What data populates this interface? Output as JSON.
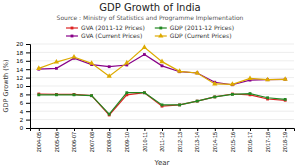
{
  "chart_data": {
    "type": "line",
    "title": "GDP Growth of India",
    "subtitle": "Source : Ministry of Statistics and Programme Implementation",
    "xlabel": "Year",
    "ylabel": "GDP Growth (%)",
    "categories": [
      "2004-05",
      "2005-06",
      "2006-07",
      "2007-08",
      "2008-09",
      "2009-10",
      "2010-11",
      "2011-12",
      "2012-13",
      "2013-14",
      "2014-15",
      "2015-16",
      "2016-17",
      "2017-18",
      "2018-19"
    ],
    "series": [
      {
        "name": "GVA (2011-12 Prices)",
        "color": "#dd2222",
        "marker": "square",
        "values": [
          8.1,
          8.0,
          8.0,
          7.7,
          3.1,
          7.9,
          8.4,
          5.2,
          5.5,
          6.4,
          7.4,
          8.1,
          7.9,
          6.9,
          6.6
        ]
      },
      {
        "name": "GDP (2011-12 Prices)",
        "color": "#228822",
        "marker": "square",
        "values": [
          7.9,
          7.9,
          7.9,
          7.7,
          3.3,
          8.4,
          8.4,
          5.5,
          5.5,
          6.4,
          7.4,
          8.0,
          8.2,
          7.2,
          6.8
        ]
      },
      {
        "name": "GVA (Current Prices)",
        "color": "#880088",
        "marker": "square",
        "values": [
          14.0,
          14.2,
          16.6,
          15.1,
          14.6,
          15.0,
          17.5,
          14.8,
          13.4,
          13.1,
          10.9,
          10.3,
          11.4,
          11.5,
          11.6
        ]
      },
      {
        "name": "GDP (Current Prices)",
        "color": "#ddaa00",
        "marker": "triangle",
        "values": [
          14.2,
          15.7,
          16.9,
          15.4,
          12.3,
          15.5,
          19.2,
          15.8,
          13.5,
          13.1,
          10.5,
          10.4,
          11.8,
          11.5,
          11.6
        ]
      }
    ],
    "ylim": [
      0,
      20
    ],
    "yticks": [
      0,
      2,
      4,
      6,
      8,
      10,
      12,
      14,
      16,
      18,
      20
    ],
    "grid": true,
    "legend": "top"
  }
}
